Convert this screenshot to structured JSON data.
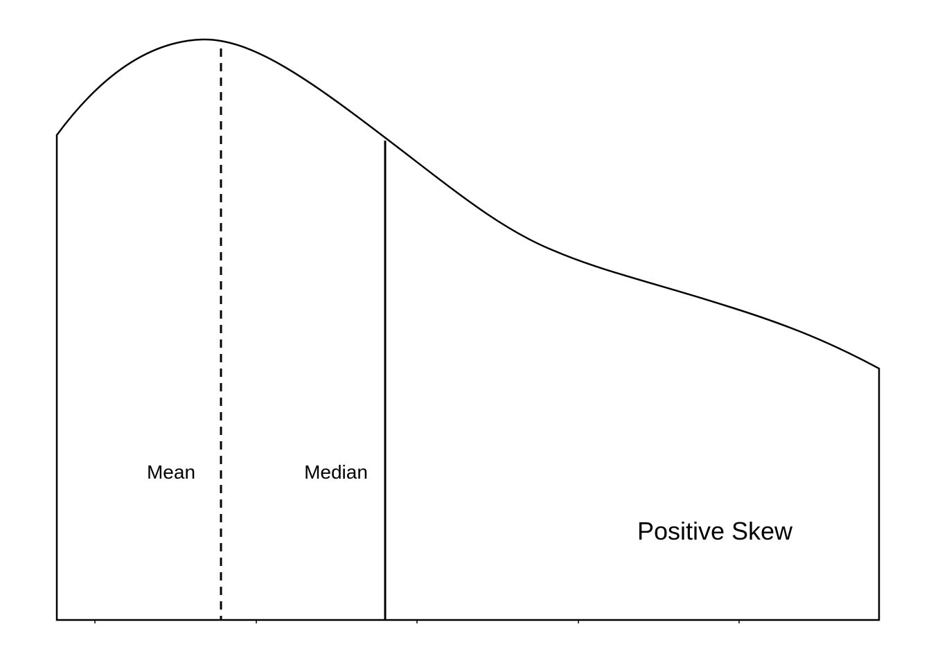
{
  "labels": {
    "mean": "Mean",
    "median": "Median",
    "skew": "Positive Skew"
  },
  "colors": {
    "stroke": "#000000",
    "background": "#ffffff"
  }
}
